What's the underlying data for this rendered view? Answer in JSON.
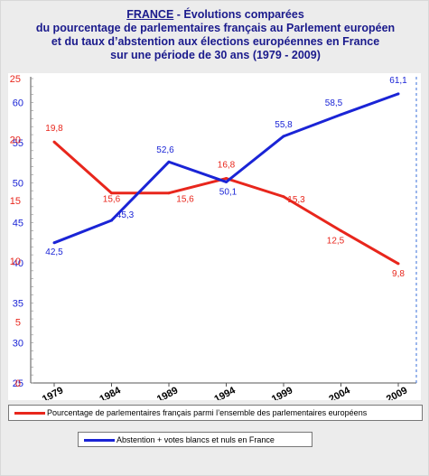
{
  "header": {
    "country": "FRANCE",
    "title_rest": " - Évolutions comparées",
    "line2": "du pourcentage de parlementaires français au Parlement européen",
    "line3": "et du taux d’abstention aux élections européennes en France",
    "line4": "sur une période de 30 ans (1979 - 2009)"
  },
  "colors": {
    "red": "#e8261c",
    "blue": "#1a24d6",
    "title": "#1a1a8c"
  },
  "chart_data": {
    "type": "line",
    "title": "FRANCE - Évolutions comparées du pourcentage de parlementaires français au Parlement européen et du taux d’abstention aux élections européennes en France sur une période de 30 ans (1979 - 2009)",
    "categories": [
      "1979",
      "1984",
      "1989",
      "1994",
      "1999",
      "2004",
      "2009"
    ],
    "axes": {
      "blue": {
        "ticks": [
          "60",
          "55",
          "50",
          "45",
          "40",
          "35",
          "30",
          "25"
        ],
        "ylim": [
          25,
          63
        ]
      },
      "red": {
        "ticks": [
          "25",
          "20",
          "15",
          "10",
          "5",
          "0"
        ],
        "ylim": [
          0,
          25
        ]
      }
    },
    "series": [
      {
        "name": "Pourcentage de parlementaires français parmi l’ensemble des parlementaires européens",
        "axis": "red",
        "color": "#e8261c",
        "values": [
          19.8,
          15.6,
          15.6,
          16.8,
          15.3,
          12.5,
          9.8
        ],
        "labels": [
          "19,8",
          "15,6",
          "15,6",
          "16,8",
          "15,3",
          "12,5",
          "9,8"
        ]
      },
      {
        "name": "Abstention + votes blancs et nuls en France",
        "axis": "blue",
        "color": "#1a24d6",
        "values": [
          42.5,
          45.3,
          52.6,
          50.1,
          55.8,
          58.5,
          61.1
        ],
        "labels": [
          "42,5",
          "45,3",
          "52,6",
          "50,1",
          "55,8",
          "58,5",
          "61,1"
        ]
      }
    ],
    "grid": false,
    "legend": "bottom"
  }
}
